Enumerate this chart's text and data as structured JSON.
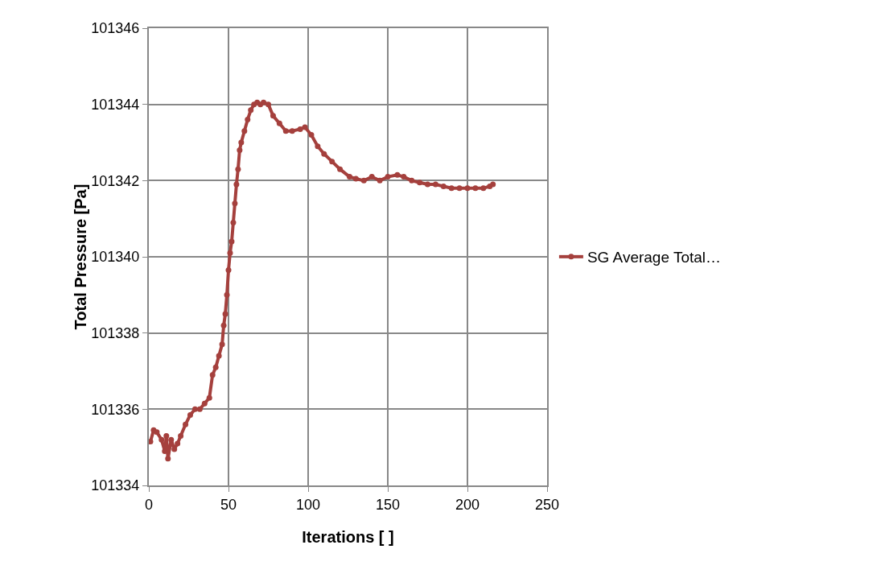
{
  "chart_data": {
    "type": "line",
    "xlabel": "Iterations [ ]",
    "ylabel": "Total Pressure [Pa]",
    "xlim": [
      0,
      250
    ],
    "xticks": [
      0,
      50,
      100,
      150,
      200,
      250
    ],
    "ylim": [
      101334,
      101346
    ],
    "yticks": [
      101334,
      101336,
      101338,
      101340,
      101342,
      101344,
      101346
    ],
    "grid": true,
    "legend": "right",
    "marker": "circle",
    "line_style": "solid",
    "series": [
      {
        "name": "SG Average Total…",
        "color": "#a5403d",
        "x": [
          1,
          3,
          5,
          8,
          10,
          11,
          12,
          14,
          16,
          18,
          20,
          23,
          26,
          29,
          32,
          35,
          38,
          40,
          42,
          44,
          46,
          47,
          48,
          49,
          50,
          51,
          52,
          53,
          54,
          55,
          56,
          57,
          58,
          60,
          62,
          64,
          66,
          68,
          70,
          72,
          75,
          78,
          82,
          86,
          90,
          95,
          98,
          102,
          106,
          110,
          115,
          120,
          126,
          130,
          135,
          140,
          145,
          150,
          156,
          160,
          165,
          170,
          175,
          180,
          185,
          190,
          195,
          200,
          205,
          210,
          214,
          216
        ],
        "values": [
          101335.15,
          101335.45,
          101335.4,
          101335.2,
          101334.9,
          101335.3,
          101334.7,
          101335.2,
          101334.95,
          101335.1,
          101335.3,
          101335.6,
          101335.85,
          101336.0,
          101336.0,
          101336.15,
          101336.3,
          101336.9,
          101337.1,
          101337.4,
          101337.7,
          101338.2,
          101338.5,
          101339.0,
          101339.65,
          101340.1,
          101340.4,
          101340.9,
          101341.4,
          101341.9,
          101342.3,
          101342.8,
          101343.0,
          101343.3,
          101343.6,
          101343.85,
          101344.0,
          101344.05,
          101344.0,
          101344.05,
          101344.0,
          101343.7,
          101343.5,
          101343.3,
          101343.3,
          101343.35,
          101343.4,
          101343.2,
          101342.9,
          101342.7,
          101342.5,
          101342.3,
          101342.1,
          101342.05,
          101342.0,
          101342.1,
          101342.0,
          101342.1,
          101342.15,
          101342.1,
          101342.0,
          101341.95,
          101341.9,
          101341.9,
          101341.85,
          101341.8,
          101341.8,
          101341.8,
          101341.8,
          101341.8,
          101341.85,
          101341.9
        ]
      }
    ]
  }
}
